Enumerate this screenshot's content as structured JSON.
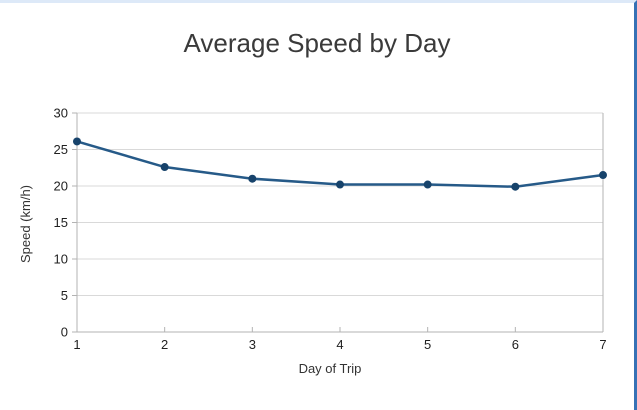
{
  "window": {
    "background": "#ffffff",
    "top_border_color": "#dde9f8",
    "right_border_color": "#3671b5"
  },
  "chart_data": {
    "type": "line",
    "title": "Average Speed by Day",
    "xlabel": "Day of Trip",
    "ylabel": "Speed (km/h)",
    "categories": [
      1,
      2,
      3,
      4,
      5,
      6,
      7
    ],
    "series": [
      {
        "name": "Average Speed",
        "values": [
          26.1,
          22.6,
          21.0,
          20.2,
          20.2,
          19.9,
          21.5
        ]
      }
    ],
    "xlim": [
      1,
      7
    ],
    "ylim": [
      0,
      30
    ],
    "y_ticks": [
      0,
      5,
      10,
      15,
      20,
      25,
      30
    ],
    "grid": "horizontal",
    "legend": "none",
    "colors": {
      "series_point": "#17436b",
      "series_line": "#265a88",
      "gridline": "#d9d9d9",
      "axis": "#b3b3b3",
      "tick_label": "#1f1f1f",
      "axis_title": "#333333",
      "title": "#3a3a3a"
    }
  }
}
